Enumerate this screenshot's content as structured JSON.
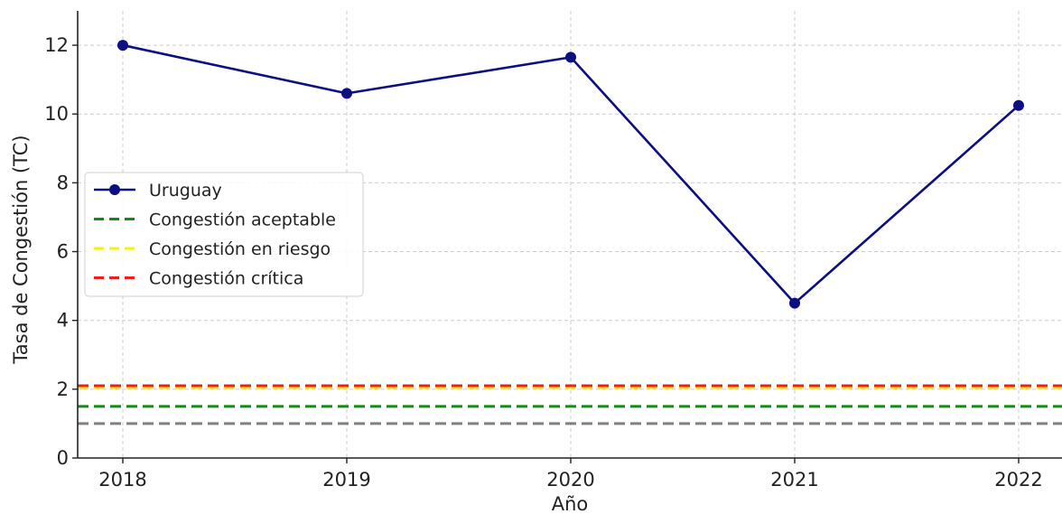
{
  "chart_data": {
    "type": "line",
    "xlabel": "Año",
    "ylabel": "Tasa de Congestión (TC)",
    "categories": [
      "2018",
      "2019",
      "2020",
      "2021",
      "2022"
    ],
    "ylim": [
      0,
      13
    ],
    "yticks": [
      0,
      2,
      4,
      6,
      8,
      10,
      12
    ],
    "grid": true,
    "legend_position": "center-left",
    "series": [
      {
        "name": "Uruguay",
        "values": [
          12.0,
          10.6,
          11.65,
          4.5,
          10.25
        ],
        "color": "#0b0f80",
        "style": "solid",
        "marker": "circle"
      }
    ],
    "reference_lines": [
      {
        "name": "Congestión aceptable",
        "value": 1.5,
        "color": "#138a13",
        "style": "dashed"
      },
      {
        "name": "Congestión en riesgo",
        "value": 2.05,
        "color": "#f5f500",
        "style": "dashed"
      },
      {
        "name": "Congestión crítica",
        "value": 2.1,
        "color": "#ee1f1f",
        "style": "dashed"
      },
      {
        "name": "",
        "value": 1.0,
        "color": "#808080",
        "style": "dashed"
      }
    ]
  }
}
